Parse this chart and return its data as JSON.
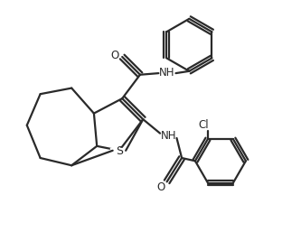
{
  "background_color": "#ffffff",
  "line_color": "#2a2a2a",
  "line_width": 1.6,
  "figsize": [
    3.33,
    2.67
  ],
  "dpi": 100,
  "labels": {
    "O_top": "O",
    "NH_top": "NH",
    "S": "S",
    "NH_bottom": "NH",
    "O_bottom": "O",
    "Cl": "Cl"
  },
  "font_size": 8.5
}
